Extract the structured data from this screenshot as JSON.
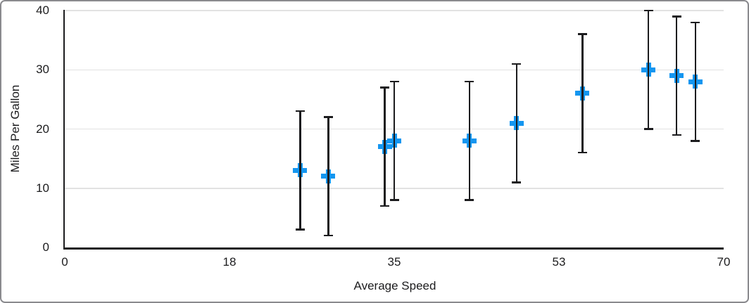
{
  "chart_data": {
    "type": "scatter",
    "title": "",
    "xlabel": "Average Speed",
    "ylabel": "Miles Per Gallon",
    "xlim": [
      0,
      70
    ],
    "ylim": [
      0,
      40
    ],
    "grid": "horizontal-only",
    "legend": "none",
    "x_ticks": [
      {
        "value": 0,
        "label": "0"
      },
      {
        "value": 17.5,
        "label": "18"
      },
      {
        "value": 35,
        "label": "35"
      },
      {
        "value": 52.5,
        "label": "53"
      },
      {
        "value": 70,
        "label": "70"
      }
    ],
    "y_ticks": [
      {
        "value": 0,
        "label": "0"
      },
      {
        "value": 10,
        "label": "10"
      },
      {
        "value": 20,
        "label": "20"
      },
      {
        "value": 30,
        "label": "30"
      },
      {
        "value": 40,
        "label": "40"
      }
    ],
    "series": [
      {
        "name": "Miles Per Gallon",
        "marker": "plus",
        "points": [
          {
            "x": 25,
            "y": 13,
            "error_minus": 10,
            "error_plus": 10
          },
          {
            "x": 28,
            "y": 12,
            "error_minus": 10,
            "error_plus": 10
          },
          {
            "x": 34,
            "y": 17,
            "error_minus": 10,
            "error_plus": 10
          },
          {
            "x": 35,
            "y": 18,
            "error_minus": 10,
            "error_plus": 10
          },
          {
            "x": 43,
            "y": 18,
            "error_minus": 10,
            "error_plus": 10
          },
          {
            "x": 48,
            "y": 21,
            "error_minus": 10,
            "error_plus": 10
          },
          {
            "x": 55,
            "y": 26,
            "error_minus": 10,
            "error_plus": 10
          },
          {
            "x": 62,
            "y": 30,
            "error_minus": 10,
            "error_plus": 10
          },
          {
            "x": 65,
            "y": 29,
            "error_minus": 10,
            "error_plus": 10
          },
          {
            "x": 67,
            "y": 28,
            "error_minus": 10,
            "error_plus": 10
          }
        ]
      }
    ],
    "colors": {
      "marker": "#1496F0",
      "error_bar": "#1C1C1E",
      "axis": "#1C1C1E",
      "gridline": "#E2E2E2",
      "text": "#1C1C1E",
      "background": "#FFFFFF",
      "frame_border": "#8A8A8E"
    }
  }
}
